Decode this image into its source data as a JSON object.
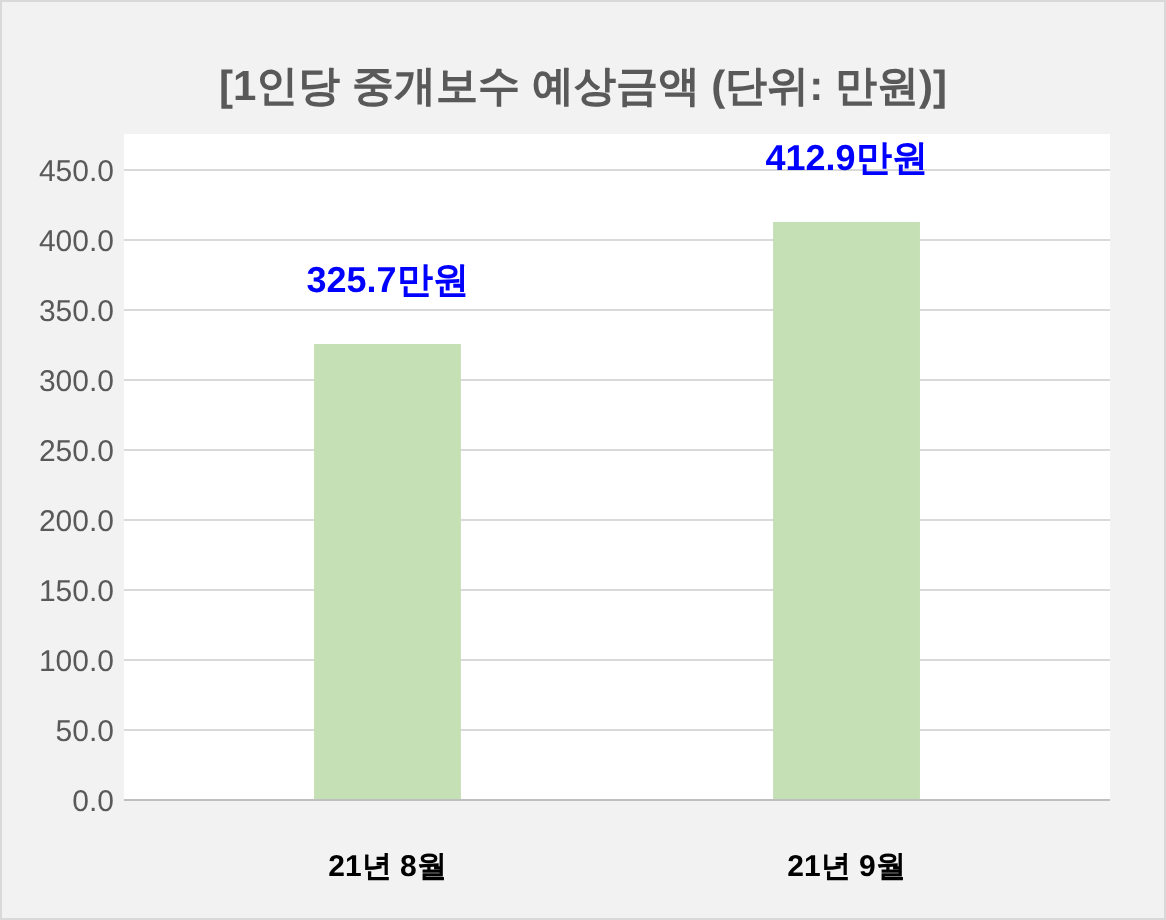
{
  "chart_data": {
    "type": "bar",
    "title": "[1인당 중개보수 예상금액 (단위: 만원)]",
    "categories": [
      "21년 8월",
      "21년 9월"
    ],
    "values": [
      325.7,
      412.9
    ],
    "value_labels": [
      "325.7만원",
      "412.9만원"
    ],
    "color": "#c5e0b4",
    "ylim": [
      0,
      450
    ],
    "yticks": [
      {
        "value": 0,
        "label": "0.0"
      },
      {
        "value": 50,
        "label": "50.0"
      },
      {
        "value": 100,
        "label": "100.0"
      },
      {
        "value": 150,
        "label": "150.0"
      },
      {
        "value": 200,
        "label": "200.0"
      },
      {
        "value": 250,
        "label": "250.0"
      },
      {
        "value": 300,
        "label": "300.0"
      },
      {
        "value": 350,
        "label": "350.0"
      },
      {
        "value": 400,
        "label": "400.0"
      },
      {
        "value": 450,
        "label": "450.0"
      }
    ],
    "grid": "y"
  }
}
